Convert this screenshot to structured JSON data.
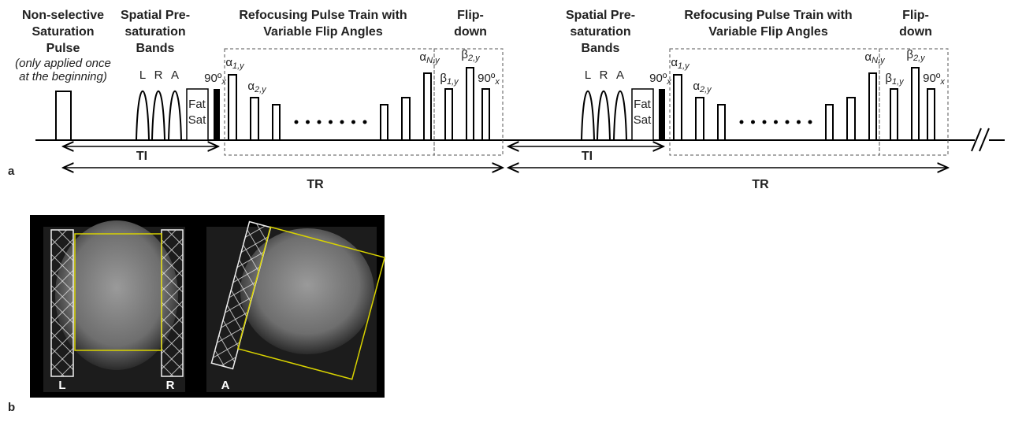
{
  "panels": [
    "a",
    "b"
  ],
  "sequence": {
    "saturation": {
      "title": [
        "Non-selective",
        "Saturation",
        "Pulse"
      ],
      "note": [
        "(only applied once",
        "at the beginning)"
      ]
    },
    "periods": [
      {
        "presat_title": [
          "Spatial Pre-",
          "saturation",
          "Bands"
        ],
        "bands": [
          "L",
          "R",
          "A"
        ],
        "fat_sat": [
          "Fat",
          "Sat"
        ],
        "excitation": {
          "base": "90º",
          "sub": "x"
        },
        "refocus_title": [
          "Refocusing Pulse Train with",
          "Variable Flip Angles"
        ],
        "refocus_pulses": [
          {
            "base": "α",
            "sub": "1,y"
          },
          {
            "base": "α",
            "sub": "2,y"
          },
          {
            "base": "α",
            "sub": "N,y"
          }
        ],
        "flipdown_title": [
          "Flip-",
          "down"
        ],
        "flipdown_pulses": [
          {
            "base": "β",
            "sub": "1,y"
          },
          {
            "base": "β",
            "sub": "2,y"
          },
          {
            "base": "90º",
            "sub": "x"
          }
        ],
        "ti": "TI",
        "tr": "TR"
      },
      {
        "presat_title": [
          "Spatial Pre-",
          "saturation",
          "Bands"
        ],
        "bands": [
          "L",
          "R",
          "A"
        ],
        "fat_sat": [
          "Fat",
          "Sat"
        ],
        "excitation": {
          "base": "90º",
          "sub": "x"
        },
        "refocus_title": [
          "Refocusing Pulse Train with",
          "Variable Flip Angles"
        ],
        "refocus_pulses": [
          {
            "base": "α",
            "sub": "1,y"
          },
          {
            "base": "α",
            "sub": "2,y"
          },
          {
            "base": "α",
            "sub": "N,y"
          }
        ],
        "flipdown_title": [
          "Flip-",
          "down"
        ],
        "flipdown_pulses": [
          {
            "base": "β",
            "sub": "1,y"
          },
          {
            "base": "β",
            "sub": "2,y"
          },
          {
            "base": "90º",
            "sub": "x"
          }
        ],
        "ti": "TI",
        "tr": "TR"
      }
    ]
  },
  "images": {
    "coronal_labels": [
      "L",
      "R"
    ],
    "sagittal_label": "A"
  }
}
